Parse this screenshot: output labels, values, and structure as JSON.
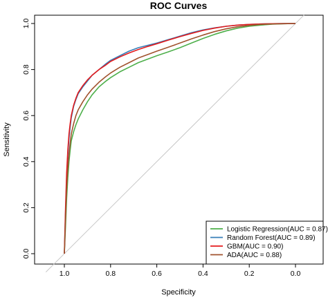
{
  "chart_data": {
    "type": "line",
    "title": "ROC Curves",
    "xlabel": "Specificity",
    "ylabel": "Sensitivity",
    "xlim": [
      1.0,
      0.0
    ],
    "ylim": [
      0.0,
      1.0
    ],
    "x_ticks": [
      "1.0",
      "0.8",
      "0.6",
      "0.4",
      "0.2",
      "0.0"
    ],
    "y_ticks": [
      "0.0",
      "0.2",
      "0.4",
      "0.6",
      "0.8",
      "1.0"
    ],
    "grid": false,
    "legend_position": "bottom-right",
    "reference_line": {
      "from": [
        1.0,
        0.0
      ],
      "to": [
        0.0,
        1.0
      ],
      "color": "#c8c8c8"
    },
    "series": [
      {
        "name": "Logistic Regression(AUC = 0.87)",
        "color": "#4daf4a",
        "x": [
          1.0,
          0.995,
          0.99,
          0.985,
          0.98,
          0.975,
          0.97,
          0.96,
          0.95,
          0.94,
          0.92,
          0.9,
          0.88,
          0.85,
          0.82,
          0.8,
          0.76,
          0.72,
          0.68,
          0.64,
          0.6,
          0.55,
          0.5,
          0.45,
          0.4,
          0.35,
          0.3,
          0.25,
          0.2,
          0.15,
          0.1,
          0.05,
          0.0
        ],
        "y": [
          0.0,
          0.12,
          0.24,
          0.33,
          0.4,
          0.45,
          0.49,
          0.53,
          0.56,
          0.585,
          0.625,
          0.66,
          0.69,
          0.725,
          0.75,
          0.765,
          0.79,
          0.81,
          0.83,
          0.845,
          0.86,
          0.877,
          0.895,
          0.915,
          0.935,
          0.953,
          0.968,
          0.98,
          0.988,
          0.993,
          0.997,
          0.999,
          1.0
        ]
      },
      {
        "name": "Random Forest(AUC = 0.89)",
        "color": "#377eb8",
        "x": [
          1.0,
          0.995,
          0.99,
          0.985,
          0.98,
          0.975,
          0.97,
          0.96,
          0.95,
          0.94,
          0.92,
          0.9,
          0.88,
          0.85,
          0.82,
          0.8,
          0.76,
          0.72,
          0.68,
          0.64,
          0.6,
          0.55,
          0.5,
          0.45,
          0.4,
          0.35,
          0.3,
          0.25,
          0.2,
          0.15,
          0.1,
          0.05,
          0.0
        ],
        "y": [
          0.0,
          0.18,
          0.33,
          0.43,
          0.5,
          0.55,
          0.59,
          0.64,
          0.67,
          0.695,
          0.725,
          0.75,
          0.775,
          0.8,
          0.825,
          0.84,
          0.86,
          0.88,
          0.895,
          0.905,
          0.915,
          0.93,
          0.945,
          0.96,
          0.972,
          0.981,
          0.988,
          0.993,
          0.996,
          0.998,
          0.999,
          1.0,
          1.0
        ]
      },
      {
        "name": "GBM(AUC = 0.90)",
        "color": "#e41a1c",
        "x": [
          1.0,
          0.995,
          0.99,
          0.985,
          0.98,
          0.975,
          0.97,
          0.96,
          0.95,
          0.94,
          0.92,
          0.9,
          0.88,
          0.85,
          0.82,
          0.8,
          0.76,
          0.72,
          0.68,
          0.64,
          0.6,
          0.55,
          0.5,
          0.45,
          0.4,
          0.35,
          0.3,
          0.25,
          0.2,
          0.15,
          0.1,
          0.05,
          0.0
        ],
        "y": [
          0.0,
          0.2,
          0.35,
          0.45,
          0.52,
          0.565,
          0.6,
          0.645,
          0.675,
          0.7,
          0.73,
          0.755,
          0.775,
          0.8,
          0.82,
          0.835,
          0.855,
          0.872,
          0.887,
          0.9,
          0.912,
          0.928,
          0.943,
          0.957,
          0.97,
          0.98,
          0.988,
          0.993,
          0.996,
          0.998,
          0.999,
          1.0,
          1.0
        ]
      },
      {
        "name": "ADA(AUC = 0.88)",
        "color": "#a0522d",
        "x": [
          1.0,
          0.995,
          0.99,
          0.985,
          0.98,
          0.975,
          0.97,
          0.96,
          0.95,
          0.94,
          0.92,
          0.9,
          0.88,
          0.85,
          0.82,
          0.8,
          0.76,
          0.72,
          0.68,
          0.64,
          0.6,
          0.55,
          0.5,
          0.45,
          0.4,
          0.35,
          0.3,
          0.25,
          0.2,
          0.15,
          0.1,
          0.05,
          0.0
        ],
        "y": [
          0.0,
          0.15,
          0.28,
          0.37,
          0.43,
          0.48,
          0.52,
          0.565,
          0.6,
          0.625,
          0.66,
          0.69,
          0.715,
          0.745,
          0.77,
          0.785,
          0.81,
          0.83,
          0.85,
          0.865,
          0.88,
          0.897,
          0.915,
          0.933,
          0.95,
          0.965,
          0.977,
          0.986,
          0.992,
          0.996,
          0.998,
          0.999,
          1.0
        ]
      }
    ]
  }
}
